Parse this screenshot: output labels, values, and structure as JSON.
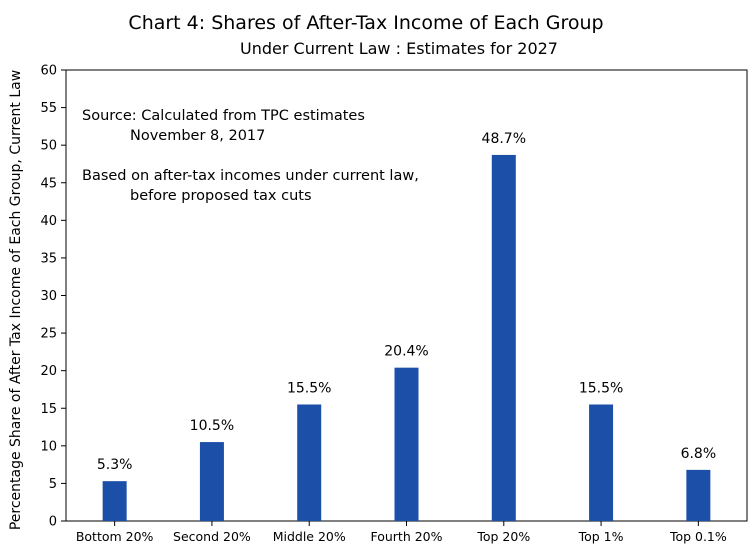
{
  "chart_data": {
    "type": "bar",
    "title": "Chart 4: Shares of After-Tax Income of Each Group",
    "subtitle": "Under Current Law  :  Estimates for 2027",
    "xlabel": "",
    "ylabel": "Percentage Share of After Tax Income of Each Group, Current Law",
    "categories": [
      "Bottom 20%",
      "Second 20%",
      "Middle 20%",
      "Fourth 20%",
      "Top 20%",
      "Top 1%",
      "Top 0.1%"
    ],
    "values": [
      5.3,
      10.5,
      15.5,
      20.4,
      48.7,
      15.5,
      6.8
    ],
    "data_labels": [
      "5.3%",
      "10.5%",
      "15.5%",
      "20.4%",
      "48.7%",
      "15.5%",
      "6.8%"
    ],
    "ylim": [
      0,
      60
    ],
    "yticks": [
      0,
      5,
      10,
      15,
      20,
      25,
      30,
      35,
      40,
      45,
      50,
      55,
      60
    ],
    "grid": false,
    "bar_color": "#1c4fa8",
    "annotations": {
      "source_line1": "Source:  Calculated from TPC estimates",
      "source_line2": "November 8, 2017",
      "note_line1": "Based on after-tax incomes under current law,",
      "note_line2": "before proposed tax cuts"
    }
  }
}
